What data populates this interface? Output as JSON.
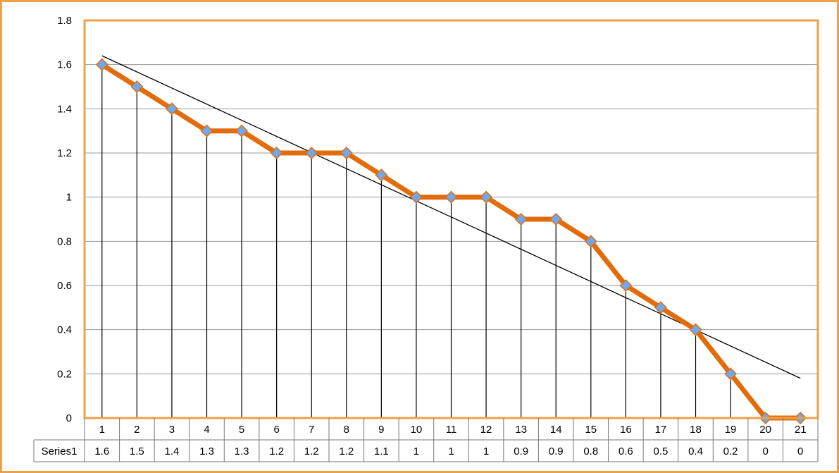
{
  "colors": {
    "frame": "#f0a04b",
    "plot_border": "#f0a04b",
    "series_line": "#e36c0a",
    "marker_fill": "#6fa8ec",
    "marker_stroke": "#e36c0a",
    "trendline": "#000000",
    "gridline": "#9a9a9a"
  },
  "chart_data": {
    "type": "line",
    "categories": [
      "1",
      "2",
      "3",
      "4",
      "5",
      "6",
      "7",
      "8",
      "9",
      "10",
      "11",
      "12",
      "13",
      "14",
      "15",
      "16",
      "17",
      "18",
      "19",
      "20",
      "21"
    ],
    "series": [
      {
        "name": "Series1",
        "values": [
          1.6,
          1.5,
          1.4,
          1.3,
          1.3,
          1.2,
          1.2,
          1.2,
          1.1,
          1,
          1,
          1,
          0.9,
          0.9,
          0.8,
          0.6,
          0.5,
          0.4,
          0.2,
          0,
          0
        ]
      }
    ],
    "y_ticks": [
      "0",
      "0.2",
      "0.4",
      "0.6",
      "0.8",
      "1",
      "1.2",
      "1.4",
      "1.6",
      "1.8"
    ],
    "ylim": [
      0,
      1.8
    ],
    "grid": true,
    "drop_lines": true,
    "markers": "diamond",
    "trendline": {
      "type": "linear",
      "start_value": 1.64,
      "end_value": 0.18
    },
    "data_table": {
      "row_header": "Series1",
      "values": [
        "1.6",
        "1.5",
        "1.4",
        "1.3",
        "1.3",
        "1.2",
        "1.2",
        "1.2",
        "1.1",
        "1",
        "1",
        "1",
        "0.9",
        "0.9",
        "0.8",
        "0.6",
        "0.5",
        "0.4",
        "0.2",
        "0",
        "0"
      ]
    }
  }
}
